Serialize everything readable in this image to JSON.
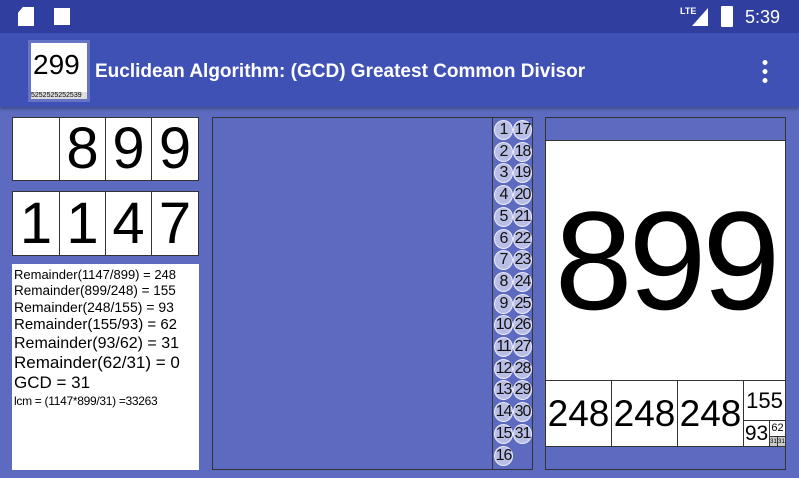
{
  "status": {
    "time": "5:39",
    "network": "LTE",
    "icons": [
      "sd-card-icon",
      "app-a-icon",
      "signal-icon",
      "battery-charging-icon"
    ]
  },
  "toolbar": {
    "title": "Euclidean Algorithm: (GCD) Greatest Common Divisor",
    "logo_number": "299",
    "logo_sub": "5252525252539",
    "menu_icon": "more-vert-icon"
  },
  "inputs": {
    "first": [
      "",
      "8",
      "9",
      "9"
    ],
    "second": [
      "1",
      "1",
      "4",
      "7"
    ]
  },
  "steps": [
    "Remainder(1147/899) = 248",
    "Remainder(899/248) = 155",
    "Remainder(248/155) = 93",
    "Remainder(155/93) = 62",
    "Remainder(93/62) = 31",
    "Remainder(62/31) = 0",
    "GCD = 31",
    "lcm = (1147*899/31) =33263"
  ],
  "counter": [
    "1",
    "2",
    "3",
    "4",
    "5",
    "6",
    "7",
    "8",
    "9",
    "10",
    "11",
    "12",
    "13",
    "14",
    "15",
    "16",
    "17",
    "18",
    "19",
    "20",
    "21",
    "22",
    "23",
    "24",
    "25",
    "26",
    "27",
    "28",
    "29",
    "30",
    "31"
  ],
  "tiling": {
    "big": "899",
    "row": [
      "248",
      "248",
      "248"
    ],
    "s155": "155",
    "s93": "93",
    "s62": "62",
    "s31a": "31",
    "s31b": "31"
  }
}
